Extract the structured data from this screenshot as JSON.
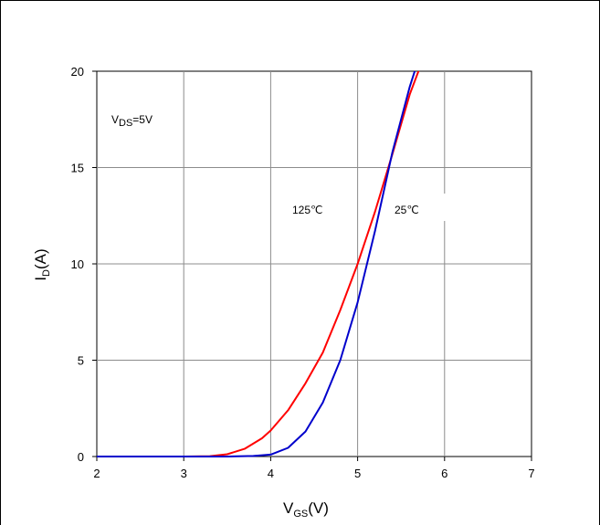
{
  "chart_data": {
    "type": "line",
    "xlabel": {
      "main": "V",
      "sub": "GS",
      "tail": "(V)"
    },
    "ylabel": {
      "main": "I",
      "sub": "D",
      "tail": "(A)"
    },
    "xlim": [
      2,
      7
    ],
    "ylim": [
      0,
      20
    ],
    "xticks": [
      2,
      3,
      4,
      5,
      6,
      7
    ],
    "yticks": [
      0,
      5,
      10,
      15,
      20
    ],
    "grid": true,
    "annotations": {
      "condition": {
        "main": "V",
        "sub": "DS",
        "tail": "=5V"
      },
      "label_125": "125℃",
      "label_25": "25℃"
    },
    "series": [
      {
        "name": "125℃",
        "color": "#ff0000",
        "x": [
          2.0,
          3.0,
          3.3,
          3.5,
          3.7,
          3.9,
          4.0,
          4.2,
          4.4,
          4.6,
          4.8,
          5.0,
          5.2,
          5.4,
          5.6,
          5.75
        ],
        "y": [
          0.0,
          0.0,
          0.02,
          0.12,
          0.4,
          0.95,
          1.35,
          2.4,
          3.8,
          5.4,
          7.6,
          10.0,
          12.7,
          15.7,
          18.8,
          20.6
        ]
      },
      {
        "name": "25℃",
        "color": "#0000cc",
        "x": [
          2.0,
          3.5,
          3.8,
          4.0,
          4.2,
          4.4,
          4.6,
          4.8,
          5.0,
          5.2,
          5.4,
          5.6,
          5.7
        ],
        "y": [
          0.0,
          0.0,
          0.03,
          0.1,
          0.45,
          1.3,
          2.8,
          5.0,
          8.0,
          11.7,
          15.8,
          19.2,
          20.6
        ]
      }
    ]
  }
}
